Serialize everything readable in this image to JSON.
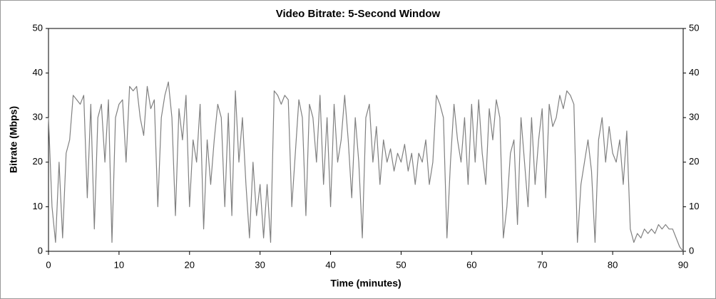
{
  "chart_data": {
    "type": "line",
    "title": "Video Bitrate: 5-Second Window",
    "xlabel": "Time (minutes)",
    "ylabel": "Bitrate (Mbps)",
    "color": "#808080",
    "x": [
      0,
      0.5,
      1,
      1.5,
      2,
      2.5,
      3,
      3.5,
      4,
      4.5,
      5,
      5.5,
      6,
      6.5,
      7,
      7.5,
      8,
      8.5,
      9,
      9.5,
      10,
      10.5,
      11,
      11.5,
      12,
      12.5,
      13,
      13.5,
      14,
      14.5,
      15,
      15.5,
      16,
      16.5,
      17,
      17.5,
      18,
      18.5,
      19,
      19.5,
      20,
      20.5,
      21,
      21.5,
      22,
      22.5,
      23,
      23.5,
      24,
      24.5,
      25,
      25.5,
      26,
      26.5,
      27,
      27.5,
      28,
      28.5,
      29,
      29.5,
      30,
      30.5,
      31,
      31.5,
      32,
      32.5,
      33,
      33.5,
      34,
      34.5,
      35,
      35.5,
      36,
      36.5,
      37,
      37.5,
      38,
      38.5,
      39,
      39.5,
      40,
      40.5,
      41,
      41.5,
      42,
      42.5,
      43,
      43.5,
      44,
      44.5,
      45,
      45.5,
      46,
      46.5,
      47,
      47.5,
      48,
      48.5,
      49,
      49.5,
      50,
      50.5,
      51,
      51.5,
      52,
      52.5,
      53,
      53.5,
      54,
      54.5,
      55,
      55.5,
      56,
      56.5,
      57,
      57.5,
      58,
      58.5,
      59,
      59.5,
      60,
      60.5,
      61,
      61.5,
      62,
      62.5,
      63,
      63.5,
      64,
      64.5,
      65,
      65.5,
      66,
      66.5,
      67,
      67.5,
      68,
      68.5,
      69,
      69.5,
      70,
      70.5,
      71,
      71.5,
      72,
      72.5,
      73,
      73.5,
      74,
      74.5,
      75,
      75.5,
      76,
      76.5,
      77,
      77.5,
      78,
      78.5,
      79,
      79.5,
      80,
      80.5,
      81,
      81.5,
      82,
      82.5,
      83,
      83.5,
      84,
      84.5,
      85,
      85.5,
      86,
      86.5,
      87,
      87.5,
      88,
      88.5,
      89,
      89.5,
      90
    ],
    "values": [
      30,
      10,
      2,
      20,
      3,
      22,
      25,
      35,
      34,
      33,
      35,
      12,
      33,
      5,
      30,
      33,
      20,
      34,
      2,
      30,
      33,
      34,
      20,
      37,
      36,
      37,
      30,
      26,
      37,
      32,
      34,
      10,
      30,
      35,
      38,
      30,
      8,
      32,
      25,
      35,
      10,
      25,
      20,
      33,
      5,
      25,
      15,
      25,
      33,
      30,
      10,
      31,
      8,
      36,
      20,
      30,
      15,
      3,
      20,
      8,
      15,
      3,
      15,
      2,
      36,
      35,
      33,
      35,
      34,
      10,
      22,
      34,
      30,
      8,
      33,
      30,
      20,
      35,
      15,
      30,
      10,
      33,
      20,
      25,
      35,
      25,
      12,
      30,
      20,
      3,
      30,
      33,
      20,
      28,
      15,
      25,
      20,
      23,
      18,
      22,
      20,
      24,
      18,
      22,
      15,
      22,
      20,
      25,
      15,
      20,
      35,
      33,
      30,
      3,
      20,
      33,
      25,
      20,
      30,
      15,
      33,
      20,
      34,
      22,
      15,
      32,
      25,
      34,
      30,
      3,
      10,
      22,
      25,
      6,
      30,
      20,
      10,
      30,
      15,
      25,
      32,
      12,
      33,
      28,
      30,
      35,
      32,
      36,
      35,
      33,
      2,
      15,
      20,
      25,
      18,
      2,
      25,
      30,
      20,
      28,
      22,
      20,
      25,
      15,
      27,
      5,
      2,
      4,
      3,
      5,
      4,
      5,
      4,
      6,
      5,
      6,
      5,
      5,
      3,
      1,
      0
    ],
    "xlim": [
      0,
      90
    ],
    "xticks": [
      0,
      10,
      20,
      30,
      40,
      50,
      60,
      70,
      80,
      90
    ],
    "ylim": [
      0,
      50
    ],
    "yticks": [
      0,
      10,
      20,
      30,
      40,
      50
    ],
    "y2lim": [
      0,
      50
    ],
    "y2ticks": [
      0,
      10,
      20,
      30,
      40,
      50
    ]
  }
}
